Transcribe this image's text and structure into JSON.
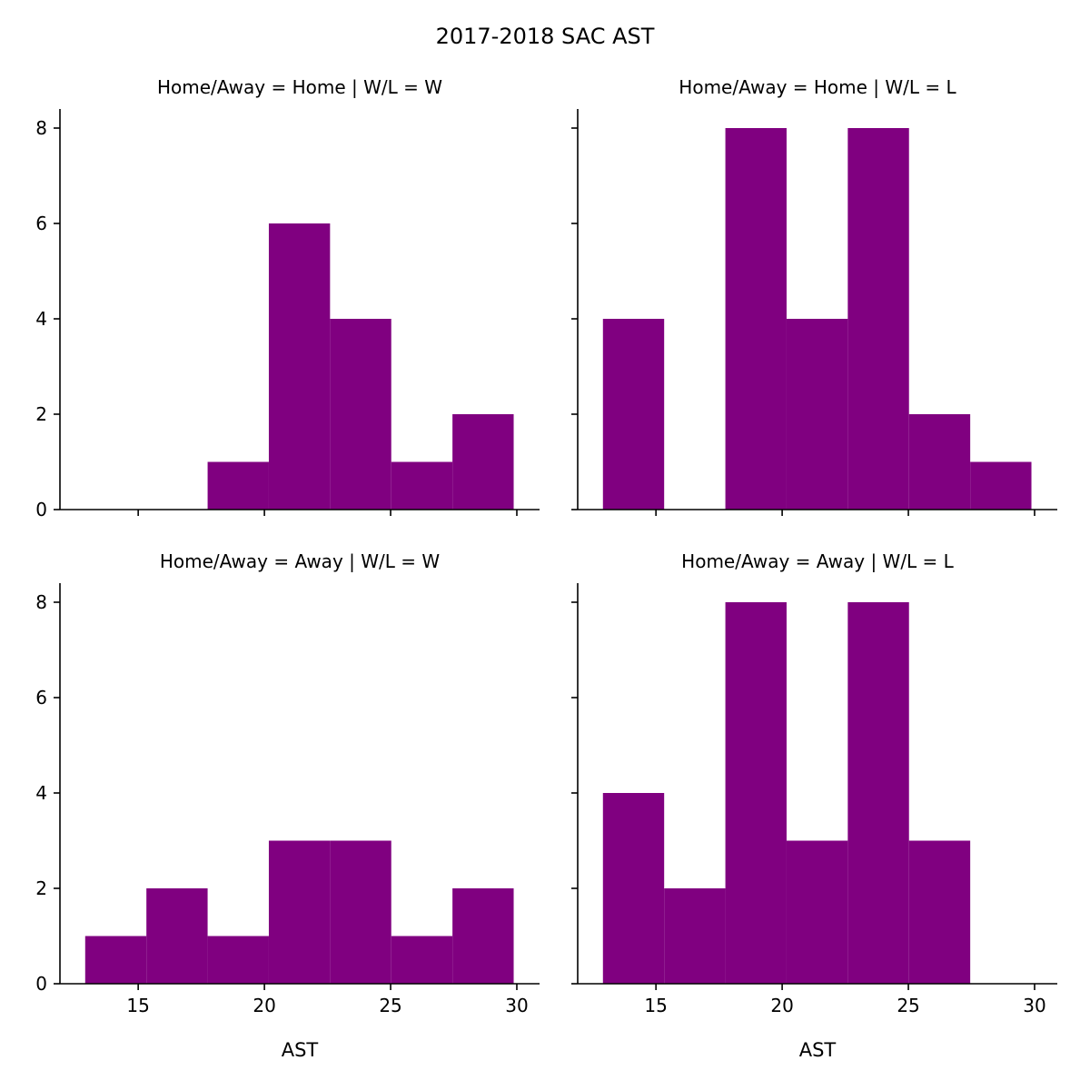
{
  "title": "2017-2018 SAC AST",
  "colors": {
    "bar": "#800080",
    "axis": "#000000"
  },
  "chart_data": [
    {
      "type": "bar",
      "title": "Home/Away = Home | W/L = W",
      "xlabel": "",
      "ylabel": "",
      "bin_edges": [
        12.9,
        15.325,
        17.75,
        20.175,
        22.6,
        25.025,
        27.45,
        29.875
      ],
      "values": [
        0,
        0,
        1,
        6,
        4,
        1,
        2
      ],
      "xlim": [
        11.9,
        30.9
      ],
      "ylim": [
        0,
        8.4
      ],
      "xticks": [
        15,
        20,
        25,
        30
      ],
      "yticks": [
        0,
        2,
        4,
        6,
        8
      ],
      "show_xticklabels": false,
      "show_yticklabels": true,
      "grid": false
    },
    {
      "type": "bar",
      "title": "Home/Away = Home | W/L = L",
      "xlabel": "",
      "ylabel": "",
      "bin_edges": [
        12.9,
        15.325,
        17.75,
        20.175,
        22.6,
        25.025,
        27.45,
        29.875
      ],
      "values": [
        4,
        0,
        8,
        4,
        8,
        2,
        1
      ],
      "xlim": [
        11.9,
        30.9
      ],
      "ylim": [
        0,
        8.4
      ],
      "xticks": [
        15,
        20,
        25,
        30
      ],
      "yticks": [
        0,
        2,
        4,
        6,
        8
      ],
      "show_xticklabels": false,
      "show_yticklabels": false,
      "grid": false
    },
    {
      "type": "bar",
      "title": "Home/Away = Away | W/L = W",
      "xlabel": "AST",
      "ylabel": "",
      "bin_edges": [
        12.9,
        15.325,
        17.75,
        20.175,
        22.6,
        25.025,
        27.45,
        29.875
      ],
      "values": [
        1,
        2,
        1,
        3,
        3,
        1,
        2
      ],
      "xlim": [
        11.9,
        30.9
      ],
      "ylim": [
        0,
        8.4
      ],
      "xticks": [
        15,
        20,
        25,
        30
      ],
      "yticks": [
        0,
        2,
        4,
        6,
        8
      ],
      "show_xticklabels": true,
      "show_yticklabels": true,
      "grid": false
    },
    {
      "type": "bar",
      "title": "Home/Away = Away | W/L = L",
      "xlabel": "AST",
      "ylabel": "",
      "bin_edges": [
        12.9,
        15.325,
        17.75,
        20.175,
        22.6,
        25.025,
        27.45,
        29.875
      ],
      "values": [
        4,
        2,
        8,
        3,
        8,
        3,
        0
      ],
      "xlim": [
        11.9,
        30.9
      ],
      "ylim": [
        0,
        8.4
      ],
      "xticks": [
        15,
        20,
        25,
        30
      ],
      "yticks": [
        0,
        2,
        4,
        6,
        8
      ],
      "show_xticklabels": true,
      "show_yticklabels": false,
      "grid": false
    }
  ]
}
